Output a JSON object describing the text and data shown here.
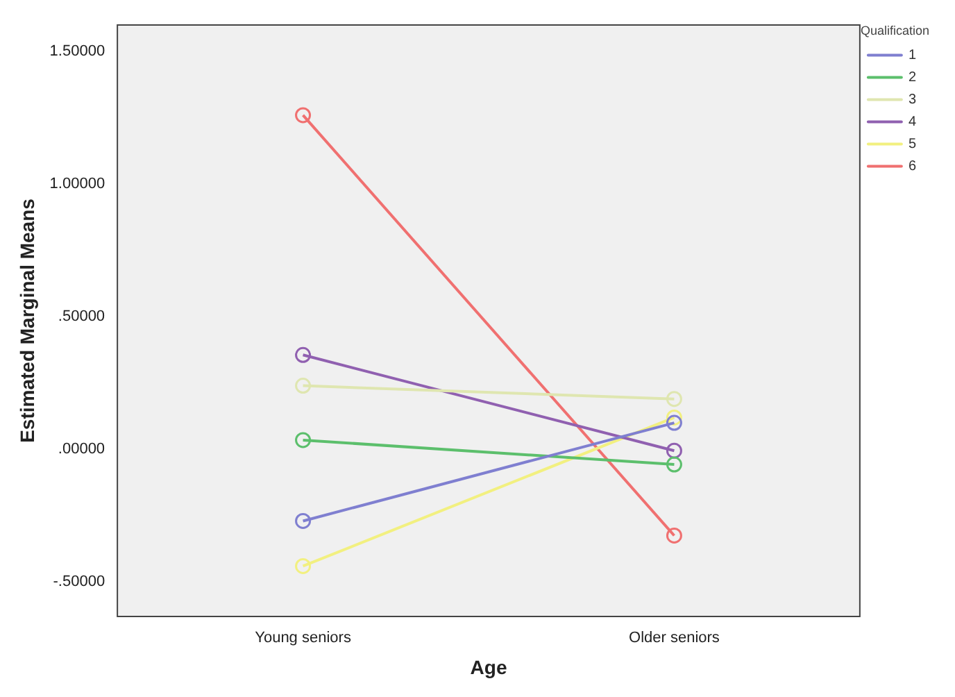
{
  "chart_data": {
    "type": "line",
    "xlabel": "Age",
    "ylabel": "Estimated Marginal Means",
    "legend_title": "Qualification",
    "categories": [
      "Young seniors",
      "Older seniors"
    ],
    "series": [
      {
        "name": "1",
        "color": "#7f7fd0",
        "values": [
          -0.27,
          0.1
        ]
      },
      {
        "name": "2",
        "color": "#5cbf6c",
        "values": [
          0.035,
          -0.057
        ]
      },
      {
        "name": "3",
        "color": "#dfe6b0",
        "values": [
          0.24,
          0.19
        ]
      },
      {
        "name": "4",
        "color": "#9060b0",
        "values": [
          0.356,
          -0.005
        ]
      },
      {
        "name": "5",
        "color": "#f2f080",
        "values": [
          -0.44,
          0.12
        ]
      },
      {
        "name": "6",
        "color": "#f07070",
        "values": [
          1.26,
          -0.325
        ]
      }
    ],
    "ylim": [
      -0.63,
      1.6
    ],
    "yticks": [
      {
        "value": -0.5,
        "label": "-.50000"
      },
      {
        "value": 0,
        "label": ".00000"
      },
      {
        "value": 0.5,
        "label": ".50000"
      },
      {
        "value": 1,
        "label": "1.00000"
      },
      {
        "value": 1.5,
        "label": "1.50000"
      }
    ],
    "grid": false,
    "legend": "top right",
    "marker": "circle",
    "line_style": "solid"
  }
}
